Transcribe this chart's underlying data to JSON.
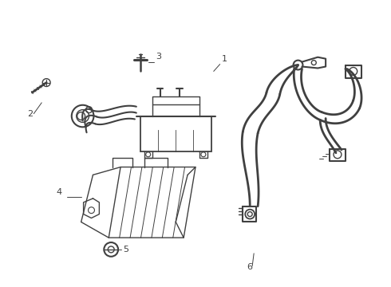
{
  "background_color": "#ffffff",
  "line_color": "#404040",
  "line_width": 1.0,
  "label_color": "#000000",
  "label_fontsize": 8,
  "fig_width": 4.9,
  "fig_height": 3.6,
  "dpi": 100
}
